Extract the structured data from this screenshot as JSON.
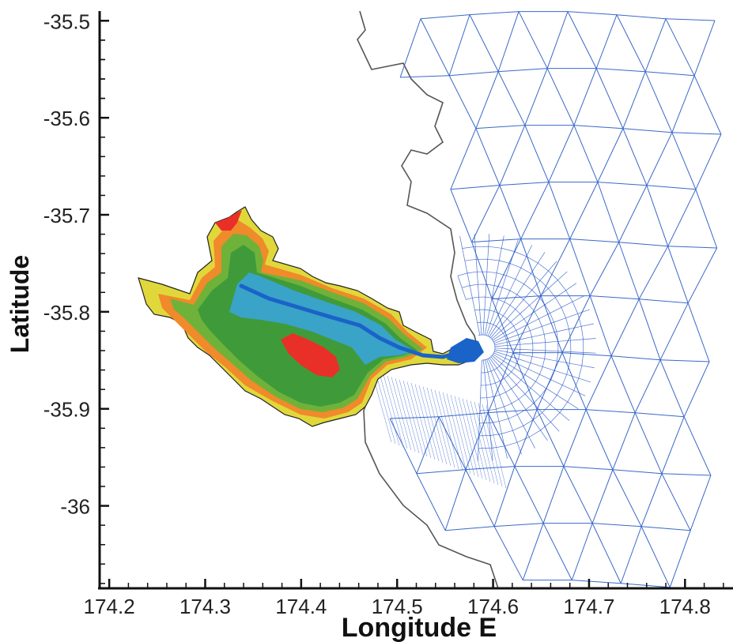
{
  "figure": {
    "x_axis": {
      "title": "Longitude E",
      "ticks": [
        "174.2",
        "174.3",
        "174.4",
        "174.5",
        "174.6",
        "174.7",
        "174.8"
      ],
      "range": [
        174.19,
        174.85
      ]
    },
    "y_axis": {
      "title": "Latitude",
      "ticks": [
        "-35.5",
        "-35.6",
        "-35.7",
        "-35.8",
        "-35.9",
        "-36"
      ],
      "range": [
        -36.085,
        -35.49
      ]
    },
    "colors": {
      "mesh_line": "#3a68c8",
      "mesh_fine": "#1e50c8",
      "coastline": "#555555",
      "harbour_deep_channel": "#1a63c8",
      "harbour_water": "#3aa3c8",
      "harbour_shallow": "#3f9b3a",
      "harbour_green_light": "#6fb23a",
      "harbour_yellow": "#e0d83a",
      "harbour_orange": "#f08a2a",
      "harbour_red": "#e83028"
    }
  }
}
